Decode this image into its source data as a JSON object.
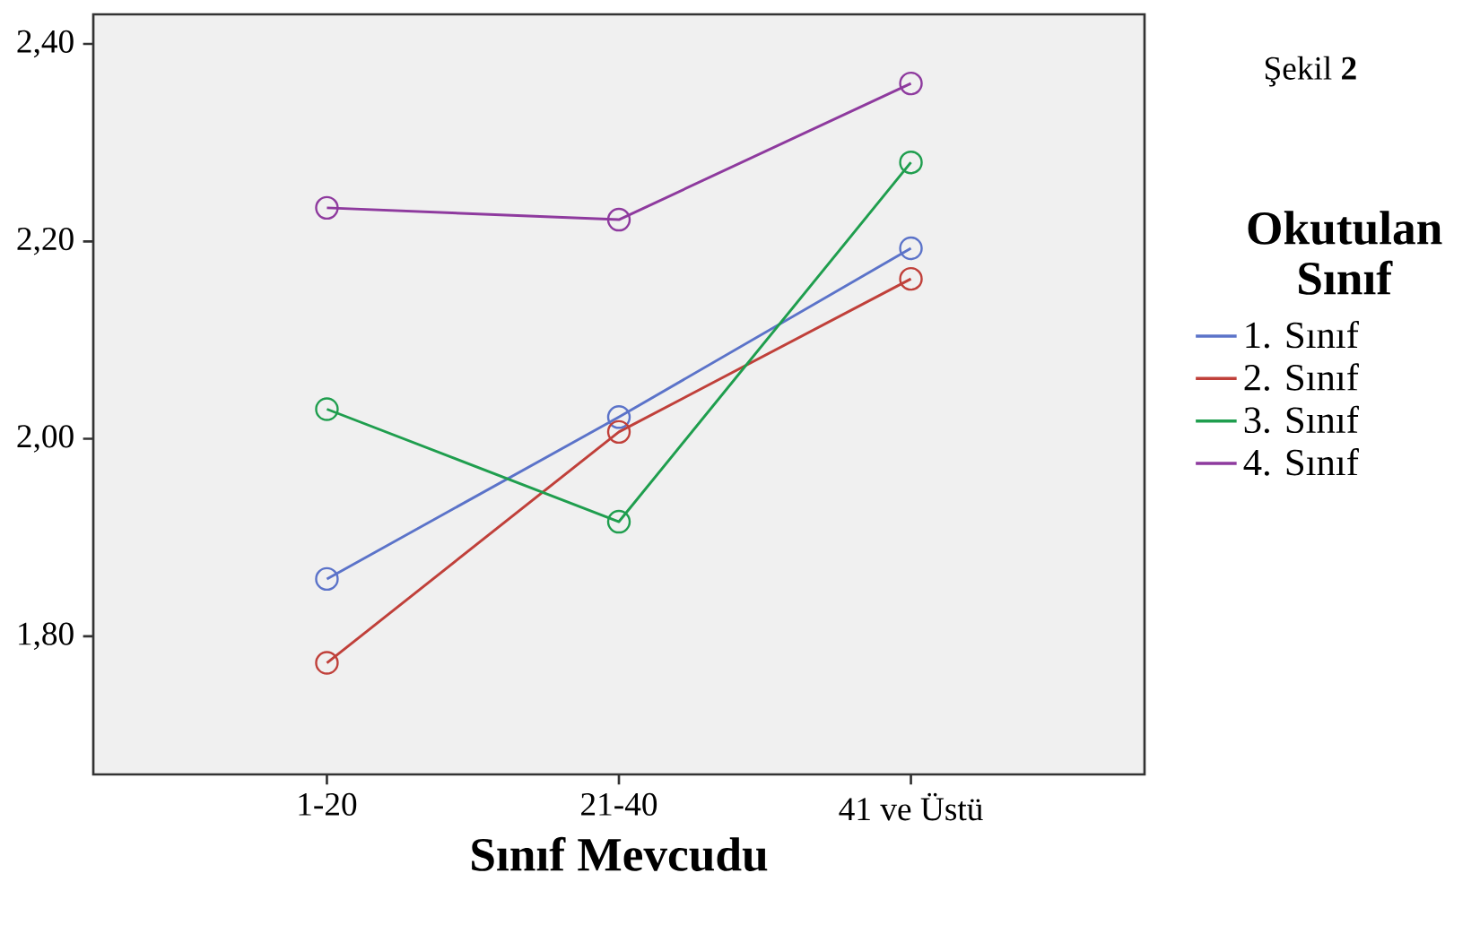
{
  "chart_data": {
    "type": "line",
    "xlabel": "Sınıf Mevcudu",
    "legend_title": "Okutulan Sınıf",
    "annotations": [
      "Şekil **2**"
    ],
    "categories": [
      "1-20",
      "21-40",
      "41 ve Üstü"
    ],
    "ylim": [
      1.66,
      2.43
    ],
    "yticks": [
      {
        "value": 1.8,
        "label": "1,80"
      },
      {
        "value": 2.0,
        "label": "2,00"
      },
      {
        "value": 2.2,
        "label": "2,20"
      },
      {
        "value": 2.4,
        "label": "2,40"
      }
    ],
    "series": [
      {
        "name": "1. Sınıf",
        "color": "#5b73c9",
        "values": [
          1.858,
          2.022,
          2.193
        ]
      },
      {
        "name": "2. Sınıf",
        "color": "#c0403a",
        "values": [
          1.773,
          2.007,
          2.162
        ]
      },
      {
        "name": "3. Sınıf",
        "color": "#1f9e4e",
        "values": [
          2.03,
          1.916,
          2.28
        ]
      },
      {
        "name": "4. Sınıf",
        "color": "#8e3a9e",
        "values": [
          2.234,
          2.222,
          2.36
        ]
      }
    ],
    "marker": "circle",
    "legend": "right",
    "grid": false
  }
}
